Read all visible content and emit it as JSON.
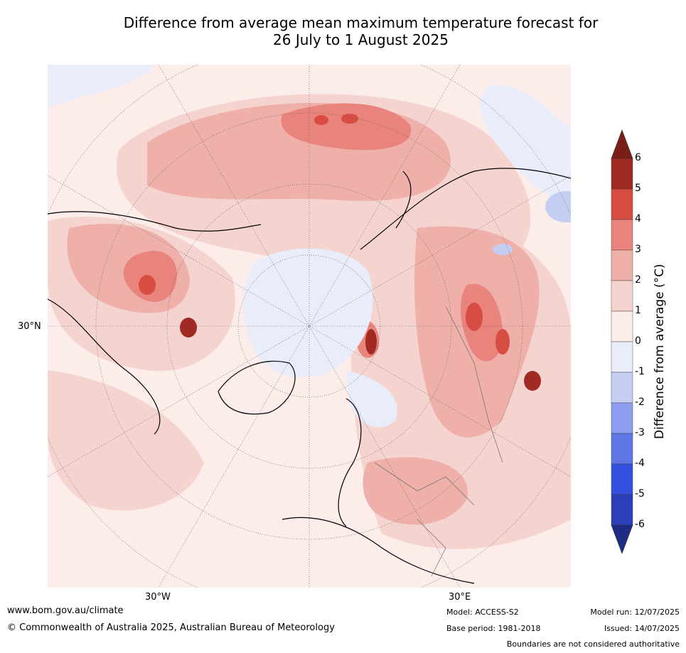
{
  "title_line1": "Difference from average mean maximum temperature forecast for",
  "title_line2": "26 July to 1 August 2025",
  "lat_label": "30°N",
  "lon_labels": [
    "30°W",
    "30°E"
  ],
  "colorbar": {
    "label": "Difference from average (°C)",
    "ticks": [
      "6",
      "5",
      "4",
      "3",
      "2",
      "1",
      "0",
      "-1",
      "-2",
      "-3",
      "-4",
      "-5",
      "-6"
    ],
    "colors": [
      "#a12a24",
      "#d84d41",
      "#e8847c",
      "#efb0aa",
      "#f5d4d0",
      "#fcecea",
      "#e9edfa",
      "#c4cdf2",
      "#8d9def",
      "#5f76e6",
      "#3450e0",
      "#2a3fb8"
    ],
    "top_arrow_color": "#7a1e18",
    "bottom_arrow_color": "#1f2c85"
  },
  "footer": {
    "website": "www.bom.gov.au/climate",
    "copyright": "© Commonwealth of Australia 2025, Australian Bureau of Meteorology",
    "model": "Model: ACCESS-S2",
    "base_period": "Base period: 1981-2018",
    "model_run": "Model run: 12/07/2025",
    "issued": "Issued: 14/07/2025",
    "disclaimer": "Boundaries are not considered authoritative"
  }
}
